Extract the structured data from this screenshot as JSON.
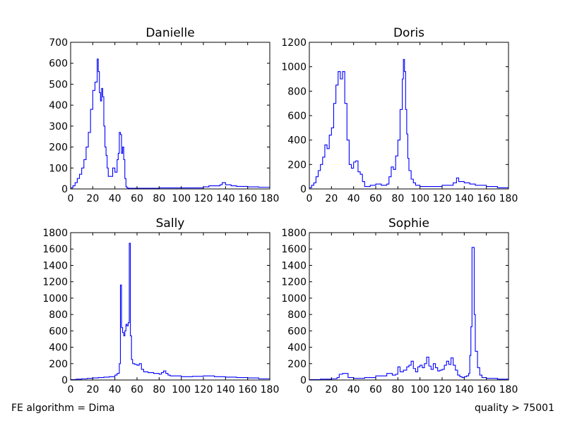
{
  "footer": {
    "left": "FE algorithm = Dima",
    "right": "quality > 75001"
  },
  "chart_data": [
    {
      "type": "line",
      "step": true,
      "title": "Danielle",
      "xlabel": "",
      "ylabel": "",
      "xlim": [
        0,
        180
      ],
      "ylim": [
        0,
        700
      ],
      "xticks": [
        0,
        20,
        40,
        60,
        80,
        100,
        120,
        140,
        160,
        180
      ],
      "yticks": [
        0,
        100,
        200,
        300,
        400,
        500,
        600,
        700
      ],
      "color": "#0000ff",
      "x": [
        0,
        2,
        4,
        6,
        8,
        10,
        12,
        14,
        16,
        18,
        20,
        22,
        24,
        25,
        26,
        27,
        28,
        29,
        30,
        31,
        32,
        33,
        34,
        36,
        38,
        40,
        42,
        43,
        44,
        45,
        46,
        47,
        48,
        49,
        50,
        51,
        52,
        54,
        56,
        60,
        70,
        80,
        90,
        100,
        110,
        120,
        125,
        130,
        135,
        137,
        140,
        145,
        150,
        160,
        170,
        180
      ],
      "y": [
        5,
        15,
        30,
        50,
        70,
        100,
        140,
        200,
        270,
        380,
        470,
        510,
        620,
        560,
        460,
        420,
        480,
        440,
        300,
        200,
        160,
        100,
        60,
        60,
        100,
        80,
        140,
        170,
        270,
        260,
        170,
        200,
        140,
        50,
        10,
        5,
        3,
        3,
        3,
        3,
        3,
        5,
        5,
        5,
        5,
        10,
        15,
        15,
        20,
        30,
        20,
        15,
        12,
        10,
        8,
        5
      ]
    },
    {
      "type": "line",
      "step": true,
      "title": "Doris",
      "xlabel": "",
      "ylabel": "",
      "xlim": [
        0,
        180
      ],
      "ylim": [
        0,
        1200
      ],
      "xticks": [
        0,
        20,
        40,
        60,
        80,
        100,
        120,
        140,
        160,
        180
      ],
      "yticks": [
        0,
        200,
        400,
        600,
        800,
        1000,
        1200
      ],
      "color": "#0000ff",
      "x": [
        0,
        2,
        4,
        6,
        8,
        10,
        12,
        14,
        16,
        18,
        20,
        22,
        24,
        26,
        28,
        30,
        32,
        34,
        36,
        38,
        40,
        42,
        44,
        46,
        48,
        50,
        55,
        60,
        65,
        70,
        72,
        74,
        76,
        78,
        80,
        82,
        84,
        85,
        86,
        87,
        88,
        89,
        90,
        92,
        94,
        96,
        100,
        110,
        120,
        130,
        133,
        135,
        140,
        145,
        150,
        160,
        170,
        180
      ],
      "y": [
        10,
        30,
        50,
        100,
        150,
        200,
        260,
        360,
        330,
        440,
        500,
        700,
        850,
        960,
        900,
        960,
        700,
        400,
        200,
        170,
        220,
        230,
        140,
        120,
        60,
        20,
        30,
        40,
        30,
        40,
        100,
        180,
        160,
        270,
        400,
        650,
        900,
        1060,
        960,
        650,
        450,
        250,
        150,
        80,
        50,
        30,
        20,
        20,
        30,
        50,
        90,
        60,
        50,
        40,
        30,
        20,
        10,
        5
      ]
    },
    {
      "type": "line",
      "step": true,
      "title": "Sally",
      "xlabel": "",
      "ylabel": "",
      "xlim": [
        0,
        180
      ],
      "ylim": [
        0,
        1800
      ],
      "xticks": [
        0,
        20,
        40,
        60,
        80,
        100,
        120,
        140,
        160,
        180
      ],
      "yticks": [
        0,
        200,
        400,
        600,
        800,
        1000,
        1200,
        1400,
        1600,
        1800
      ],
      "color": "#0000ff",
      "x": [
        0,
        5,
        10,
        15,
        20,
        25,
        30,
        35,
        40,
        42,
        44,
        45,
        46,
        47,
        48,
        49,
        50,
        51,
        52,
        53,
        54,
        55,
        56,
        58,
        60,
        62,
        64,
        66,
        70,
        75,
        80,
        82,
        84,
        86,
        88,
        90,
        95,
        100,
        110,
        120,
        130,
        140,
        150,
        160,
        170,
        180
      ],
      "y": [
        5,
        10,
        15,
        20,
        25,
        30,
        35,
        40,
        60,
        80,
        200,
        1160,
        640,
        580,
        540,
        600,
        680,
        660,
        700,
        1670,
        540,
        250,
        200,
        190,
        180,
        200,
        130,
        100,
        90,
        80,
        70,
        90,
        110,
        80,
        60,
        50,
        50,
        40,
        45,
        50,
        40,
        35,
        30,
        25,
        15,
        5
      ]
    },
    {
      "type": "line",
      "step": true,
      "title": "Sophie",
      "xlabel": "",
      "ylabel": "",
      "xlim": [
        0,
        180
      ],
      "ylim": [
        0,
        1800
      ],
      "xticks": [
        0,
        20,
        40,
        60,
        80,
        100,
        120,
        140,
        160,
        180
      ],
      "yticks": [
        0,
        200,
        400,
        600,
        800,
        1000,
        1200,
        1400,
        1600,
        1800
      ],
      "color": "#0000ff",
      "x": [
        0,
        10,
        20,
        25,
        27,
        30,
        35,
        40,
        50,
        60,
        70,
        75,
        78,
        80,
        82,
        85,
        88,
        90,
        92,
        94,
        96,
        98,
        100,
        102,
        104,
        106,
        108,
        110,
        112,
        114,
        116,
        118,
        120,
        122,
        124,
        126,
        128,
        130,
        132,
        134,
        136,
        138,
        140,
        142,
        144,
        145,
        146,
        147,
        148,
        149,
        150,
        152,
        154,
        156,
        160,
        170,
        180
      ],
      "y": [
        5,
        10,
        15,
        30,
        70,
        80,
        30,
        20,
        30,
        50,
        80,
        60,
        70,
        160,
        100,
        120,
        160,
        180,
        230,
        140,
        100,
        160,
        180,
        150,
        200,
        280,
        170,
        130,
        200,
        150,
        110,
        120,
        130,
        180,
        230,
        190,
        270,
        180,
        120,
        60,
        40,
        30,
        40,
        50,
        80,
        300,
        650,
        1620,
        1620,
        800,
        350,
        150,
        60,
        30,
        20,
        10,
        5
      ]
    }
  ]
}
